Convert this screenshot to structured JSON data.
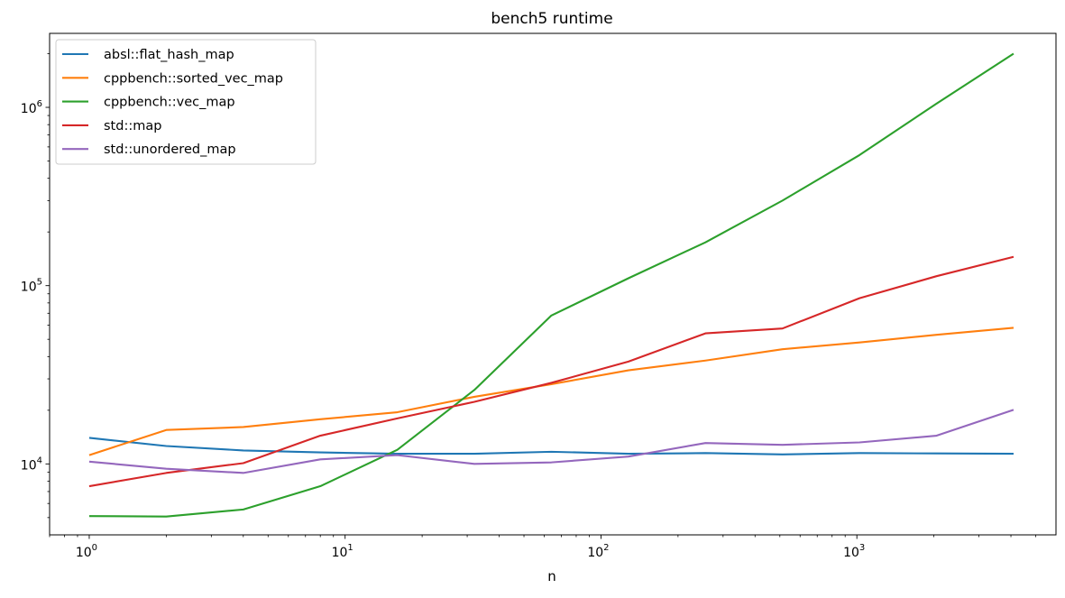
{
  "chart_data": {
    "type": "line",
    "title": "bench5 runtime",
    "xlabel": "n",
    "ylabel": "",
    "xscale": "log",
    "yscale": "log",
    "xlim": [
      0.7,
      6000
    ],
    "ylim": [
      4000,
      2600000
    ],
    "x_ticks": [
      {
        "base": "10",
        "exp": "0",
        "value": 1
      },
      {
        "base": "10",
        "exp": "1",
        "value": 10
      },
      {
        "base": "10",
        "exp": "2",
        "value": 100
      },
      {
        "base": "10",
        "exp": "3",
        "value": 1000
      }
    ],
    "y_ticks": [
      {
        "base": "10",
        "exp": "4",
        "value": 10000
      },
      {
        "base": "10",
        "exp": "5",
        "value": 100000
      },
      {
        "base": "10",
        "exp": "6",
        "value": 1000000
      }
    ],
    "grid": false,
    "legend_position": "top-left",
    "x": [
      1,
      2,
      4,
      8,
      16,
      32,
      64,
      128,
      256,
      512,
      1024,
      2048,
      4096
    ],
    "series": [
      {
        "name": "absl::flat_hash_map",
        "color": "#1f77b4",
        "values": [
          14000,
          12600,
          11900,
          11600,
          11400,
          11400,
          11700,
          11400,
          11500,
          11300,
          11500,
          11450,
          11400
        ]
      },
      {
        "name": "cppbench::sorted_vec_map",
        "color": "#ff7f0e",
        "values": [
          11200,
          15500,
          16100,
          17800,
          19500,
          23800,
          28000,
          33500,
          38000,
          44000,
          48000,
          53000,
          58000
        ]
      },
      {
        "name": "cppbench::vec_map",
        "color": "#2ca02c",
        "values": [
          5100,
          5070,
          5550,
          7500,
          12000,
          26000,
          68000,
          110000,
          175000,
          300000,
          540000,
          1050000,
          2000000
        ]
      },
      {
        "name": "std::map",
        "color": "#d62728",
        "values": [
          7500,
          8900,
          10100,
          14400,
          18000,
          22300,
          28500,
          37500,
          54000,
          57500,
          85000,
          113000,
          145000
        ]
      },
      {
        "name": "std::unordered_map",
        "color": "#9467bd",
        "values": [
          10300,
          9400,
          8900,
          10600,
          11200,
          10000,
          10200,
          11000,
          13100,
          12800,
          13200,
          14400,
          20100
        ]
      }
    ]
  }
}
